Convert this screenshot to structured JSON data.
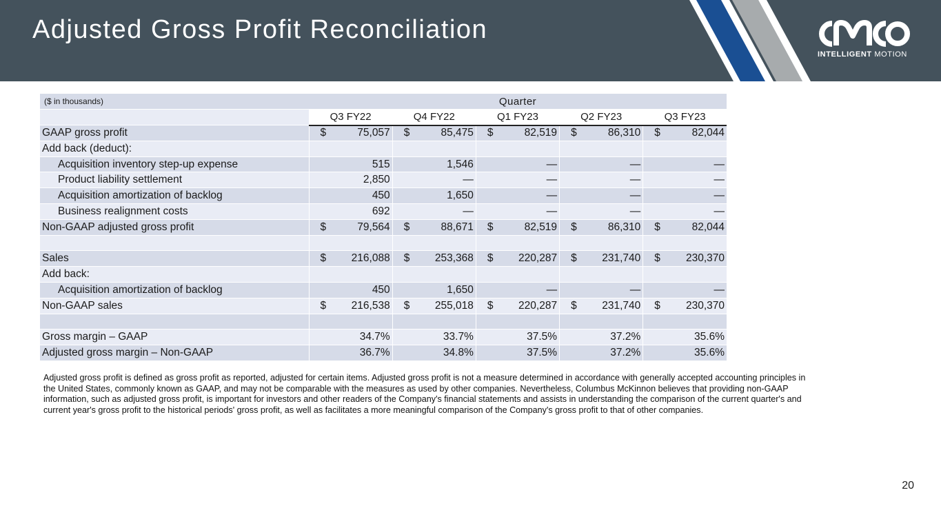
{
  "slide": {
    "title": "Adjusted Gross Profit Reconciliation",
    "page_number": "20",
    "colors": {
      "header_bg": "#44525c",
      "stripe_blue": "#1a4f93",
      "stripe_gray": "#a7abad",
      "row_dark": "#d6dbe8",
      "row_light": "#e9ecf5"
    }
  },
  "logo": {
    "wordmark": "CMCO",
    "tag_bold": "INTELLIGENT",
    "tag_rest": " MOTION"
  },
  "table": {
    "units_label": "($ in thousands)",
    "quarter_label": "Quarter",
    "columns": [
      "Q3 FY22",
      "Q4 FY22",
      "Q1 FY23",
      "Q2 FY23",
      "Q3 FY23"
    ],
    "rows": [
      {
        "label": "GAAP gross profit",
        "dollar": true,
        "values": [
          "75,057",
          "85,475",
          "82,519",
          "86,310",
          "82,044"
        ]
      },
      {
        "label": "Add back (deduct):",
        "dollar": false,
        "values": [
          "",
          "",
          "",
          "",
          ""
        ]
      },
      {
        "label": "Acquisition inventory step-up expense",
        "dollar": false,
        "values": [
          "515",
          "1,546",
          "—",
          "—",
          "—"
        ]
      },
      {
        "label": "Product liability settlement",
        "dollar": false,
        "values": [
          "2,850",
          "—",
          "—",
          "—",
          "—"
        ]
      },
      {
        "label": "Acquisition amortization of backlog",
        "dollar": false,
        "values": [
          "450",
          "1,650",
          "—",
          "—",
          "—"
        ]
      },
      {
        "label": "Business realignment costs",
        "dollar": false,
        "values": [
          "692",
          "—",
          "—",
          "—",
          "—"
        ]
      },
      {
        "label": "Non-GAAP adjusted gross profit",
        "dollar": true,
        "values": [
          "79,564",
          "88,671",
          "82,519",
          "86,310",
          "82,044"
        ]
      },
      {
        "label": "",
        "dollar": false,
        "values": [
          "",
          "",
          "",
          "",
          ""
        ]
      },
      {
        "label": "Sales",
        "dollar": true,
        "values": [
          "216,088",
          "253,368",
          "220,287",
          "231,740",
          "230,370"
        ]
      },
      {
        "label": "Add back:",
        "dollar": false,
        "values": [
          "",
          "",
          "",
          "",
          ""
        ]
      },
      {
        "label": "Acquisition amortization of backlog",
        "dollar": false,
        "values": [
          "450",
          "1,650",
          "—",
          "—",
          "—"
        ]
      },
      {
        "label": "Non-GAAP sales",
        "dollar": true,
        "values": [
          "216,538",
          "255,018",
          "220,287",
          "231,740",
          "230,370"
        ]
      },
      {
        "label": "",
        "dollar": false,
        "values": [
          "",
          "",
          "",
          "",
          ""
        ]
      },
      {
        "label": "Gross margin – GAAP",
        "dollar": false,
        "values": [
          "34.7%",
          "33.7%",
          "37.5%",
          "37.2%",
          "35.6%"
        ]
      },
      {
        "label": "Adjusted gross margin – Non-GAAP",
        "dollar": false,
        "values": [
          "36.7%",
          "34.8%",
          "37.5%",
          "37.2%",
          "35.6%"
        ]
      }
    ],
    "dollar_sign": "$"
  },
  "footnote": "Adjusted gross profit is defined as gross profit as reported, adjusted for certain items.  Adjusted gross profit is not a measure determined in accordance with generally accepted accounting principles in the United States, commonly known as GAAP, and may not be comparable with the measures as used by other companies. Nevertheless, Columbus McKinnon believes that providing non-GAAP information, such as adjusted gross profit, is important for investors and other readers of the Company's financial statements and assists in understanding the comparison of the current quarter's and current year's gross profit to the historical periods' gross profit, as well as facilitates a more meaningful comparison of the Company's gross profit to that of other companies."
}
